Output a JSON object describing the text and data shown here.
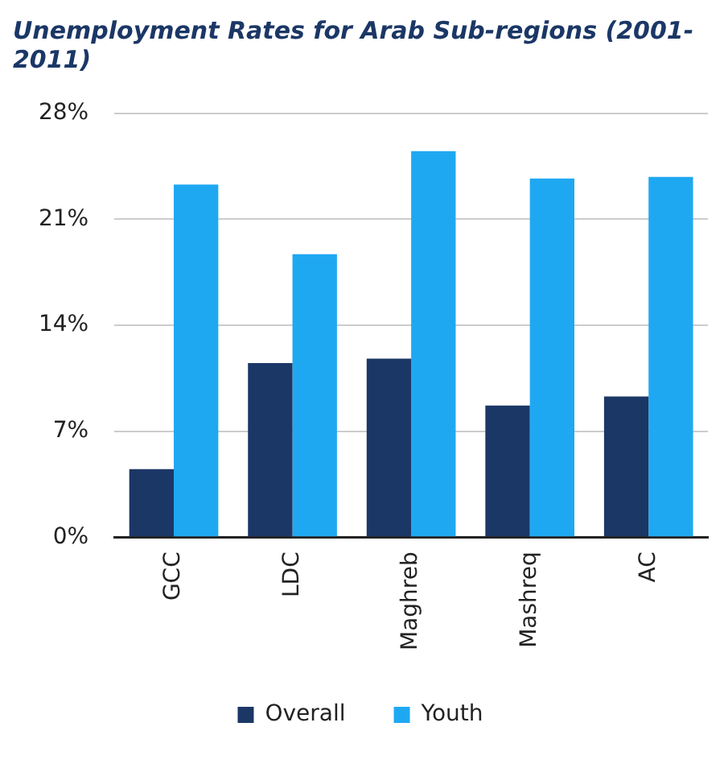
{
  "chart_data": {
    "type": "bar",
    "title": "Unemployment Rates for Arab Sub-regions (2001-2011)",
    "categories": [
      "GCC",
      "LDC",
      "Maghreb",
      "Mashreq",
      "AC"
    ],
    "series": [
      {
        "name": "Overall",
        "color": "#1b3766",
        "values": [
          4.5,
          11.5,
          11.8,
          8.7,
          9.3
        ]
      },
      {
        "name": "Youth",
        "color": "#1fa8f2",
        "values": [
          23.3,
          18.7,
          25.5,
          23.7,
          23.8
        ]
      }
    ],
    "ylim": [
      0,
      28
    ],
    "yticks": [
      {
        "value": 0,
        "label": "0%"
      },
      {
        "value": 7,
        "label": "7%"
      },
      {
        "value": 14,
        "label": "14%"
      },
      {
        "value": 21,
        "label": "21%"
      },
      {
        "value": 28,
        "label": "28%"
      }
    ],
    "grid": "y",
    "legend": "bottom"
  }
}
